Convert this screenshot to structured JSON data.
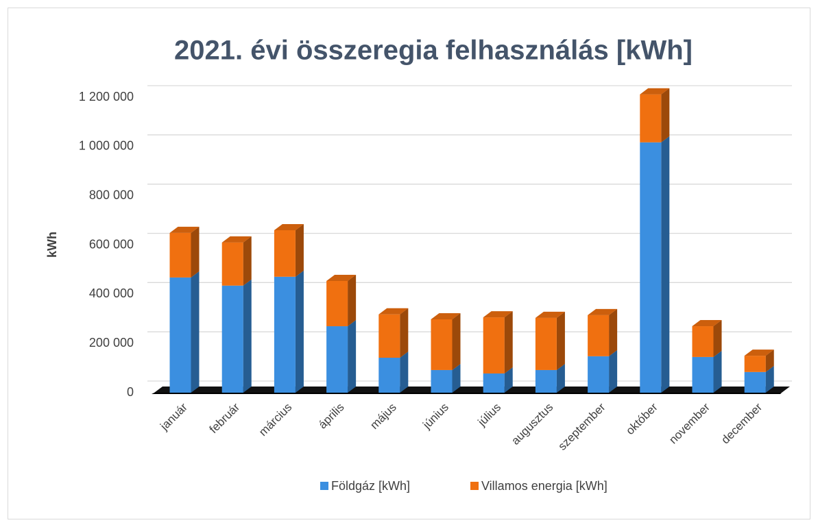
{
  "chart_data": {
    "type": "bar3d_stacked",
    "title": "2021. évi összeregia felhasználás [kWh]",
    "y_label": "kWh",
    "categories": [
      "január",
      "február",
      "március",
      "április",
      "május",
      "június",
      "július",
      "augusztus",
      "szeptember",
      "október",
      "november",
      "december"
    ],
    "series": [
      {
        "name": "Földgáz [kWh]",
        "color": "#3b8fe0",
        "values": [
          468000,
          435000,
          471000,
          270000,
          142000,
          92000,
          78000,
          92000,
          148000,
          1017000,
          145000,
          84000
        ]
      },
      {
        "name": "Villamos energia [kWh]",
        "color": "#f07010",
        "values": [
          181000,
          175000,
          189000,
          184000,
          176000,
          206000,
          228000,
          212000,
          167000,
          195000,
          125000,
          66000
        ]
      }
    ],
    "ylim": [
      0,
      1200000
    ],
    "yticks": [
      0,
      {
        "value": 200000,
        "label": "200 000"
      },
      {
        "value": 400000,
        "label": "400 000"
      },
      {
        "value": 600000,
        "label": "600 000"
      },
      {
        "value": 800000,
        "label": "800 000"
      },
      {
        "value": 1000000,
        "label": "1 000 000"
      },
      {
        "value": 1200000,
        "label": "1 200 000"
      }
    ],
    "grid": true,
    "legend": "bottom"
  }
}
